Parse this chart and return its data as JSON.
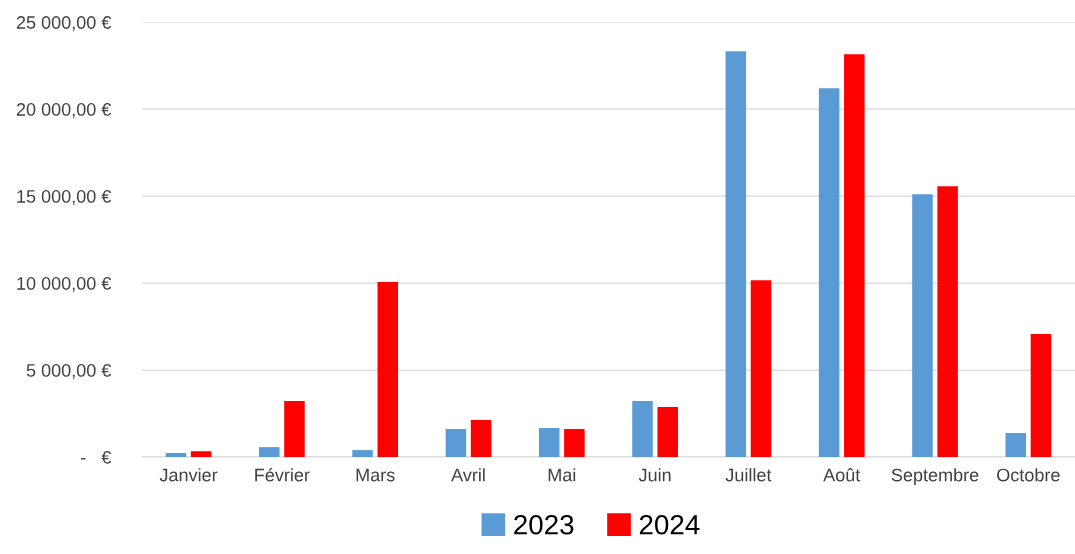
{
  "chart_data": {
    "type": "bar",
    "categories": [
      "Janvier",
      "Février",
      "Mars",
      "Avril",
      "Mai",
      "Juin",
      "Juillet",
      "Août",
      "Septembre",
      "Octobre"
    ],
    "series": [
      {
        "name": "2023",
        "color": "#5b9bd5",
        "values": [
          230,
          570,
          400,
          1610,
          1670,
          3220,
          23330,
          21200,
          15110,
          1380
        ]
      },
      {
        "name": "2024",
        "color": "#ff0000",
        "values": [
          340,
          3220,
          10060,
          2130,
          1610,
          2870,
          10170,
          23160,
          15570,
          7070
        ]
      }
    ],
    "ylim": [
      0,
      25000
    ],
    "yticks": [
      {
        "value": 0,
        "label": "-   €"
      },
      {
        "value": 5000,
        "label": "5 000,00 €"
      },
      {
        "value": 10000,
        "label": "10 000,00 €"
      },
      {
        "value": 15000,
        "label": "15 000,00 €"
      },
      {
        "value": 20000,
        "label": "20 000,00 €"
      },
      {
        "value": 25000,
        "label": "25 000,00 €"
      }
    ],
    "grid": "y",
    "legend": "bottom"
  }
}
